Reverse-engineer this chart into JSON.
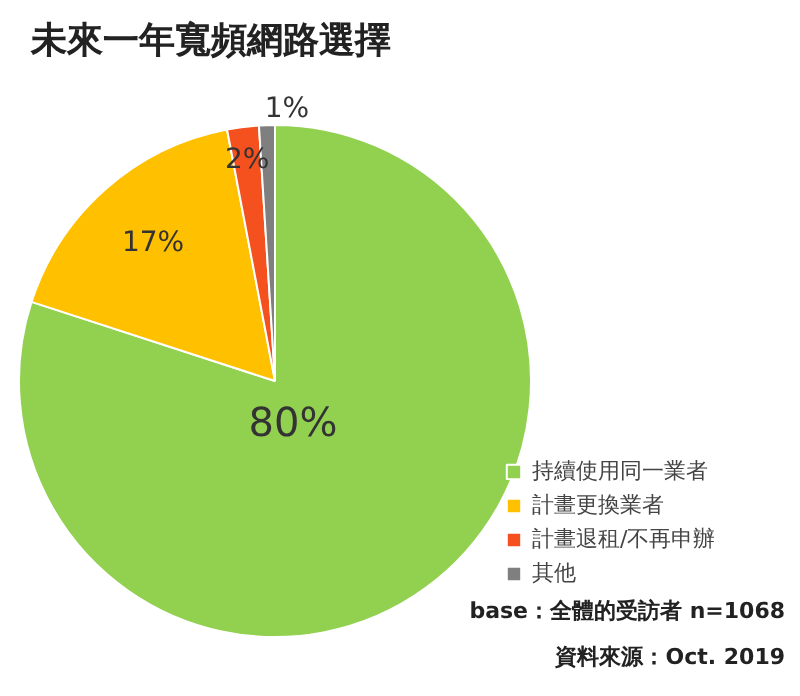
{
  "chart_data": {
    "type": "pie",
    "title": "未來一年寬頻網路選擇",
    "categories": [
      "持續使用同一業者",
      "計畫更換業者",
      "計畫退租/不再申辦",
      "其他"
    ],
    "values": [
      80,
      17,
      2,
      1
    ],
    "colors": [
      "#92d050",
      "#ffc000",
      "#f4511e",
      "#7f7f7f"
    ],
    "value_labels": [
      "80%",
      "17%",
      "2%",
      "1%"
    ],
    "legend": "bottom right",
    "annotations": [
      "base：全體的受訪者 n=1068",
      "資料來源：Oct. 2019"
    ]
  }
}
